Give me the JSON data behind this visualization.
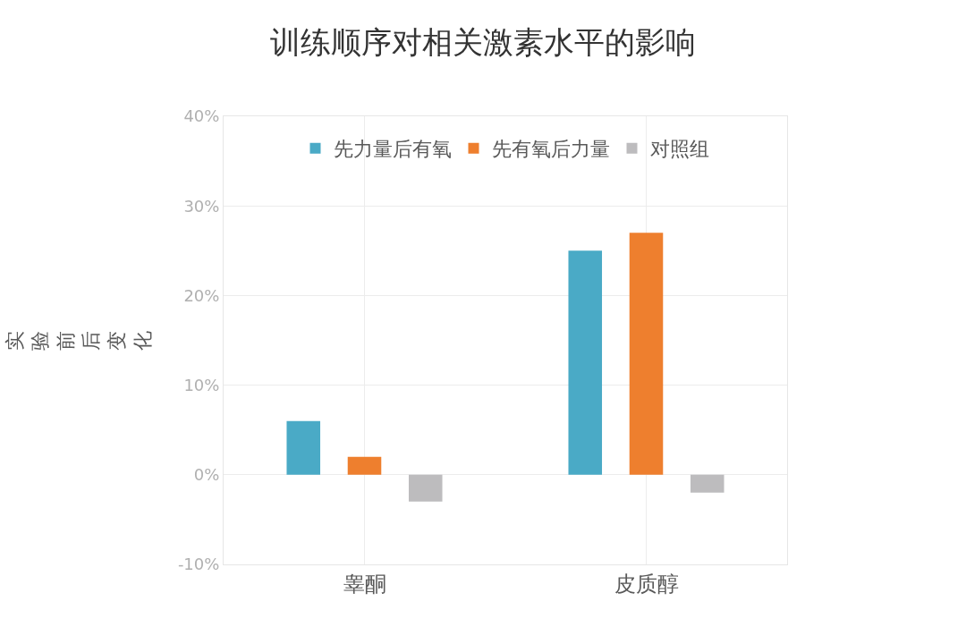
{
  "chart_data": {
    "type": "bar",
    "title": "训练顺序对相关激素水平的影响",
    "ylabel": "实验前后变化",
    "categories": [
      "睾酮",
      "皮质醇"
    ],
    "series": [
      {
        "name": "先力量后有氧",
        "color": "#4aaac6",
        "values": [
          6,
          25
        ]
      },
      {
        "name": "先有氧后力量",
        "color": "#ee7f2e",
        "values": [
          2,
          27
        ]
      },
      {
        "name": "对照组",
        "color": "#bdbcbe",
        "values": [
          -3,
          -2
        ]
      }
    ],
    "ylim": [
      -10,
      40
    ],
    "yticks": [
      {
        "value": -10,
        "label": "-10%"
      },
      {
        "value": 0,
        "label": "0%"
      },
      {
        "value": 10,
        "label": "10%"
      },
      {
        "value": 20,
        "label": "20%"
      },
      {
        "value": 30,
        "label": "30%"
      },
      {
        "value": 40,
        "label": "40%"
      }
    ],
    "grid": true,
    "legend": "top"
  }
}
